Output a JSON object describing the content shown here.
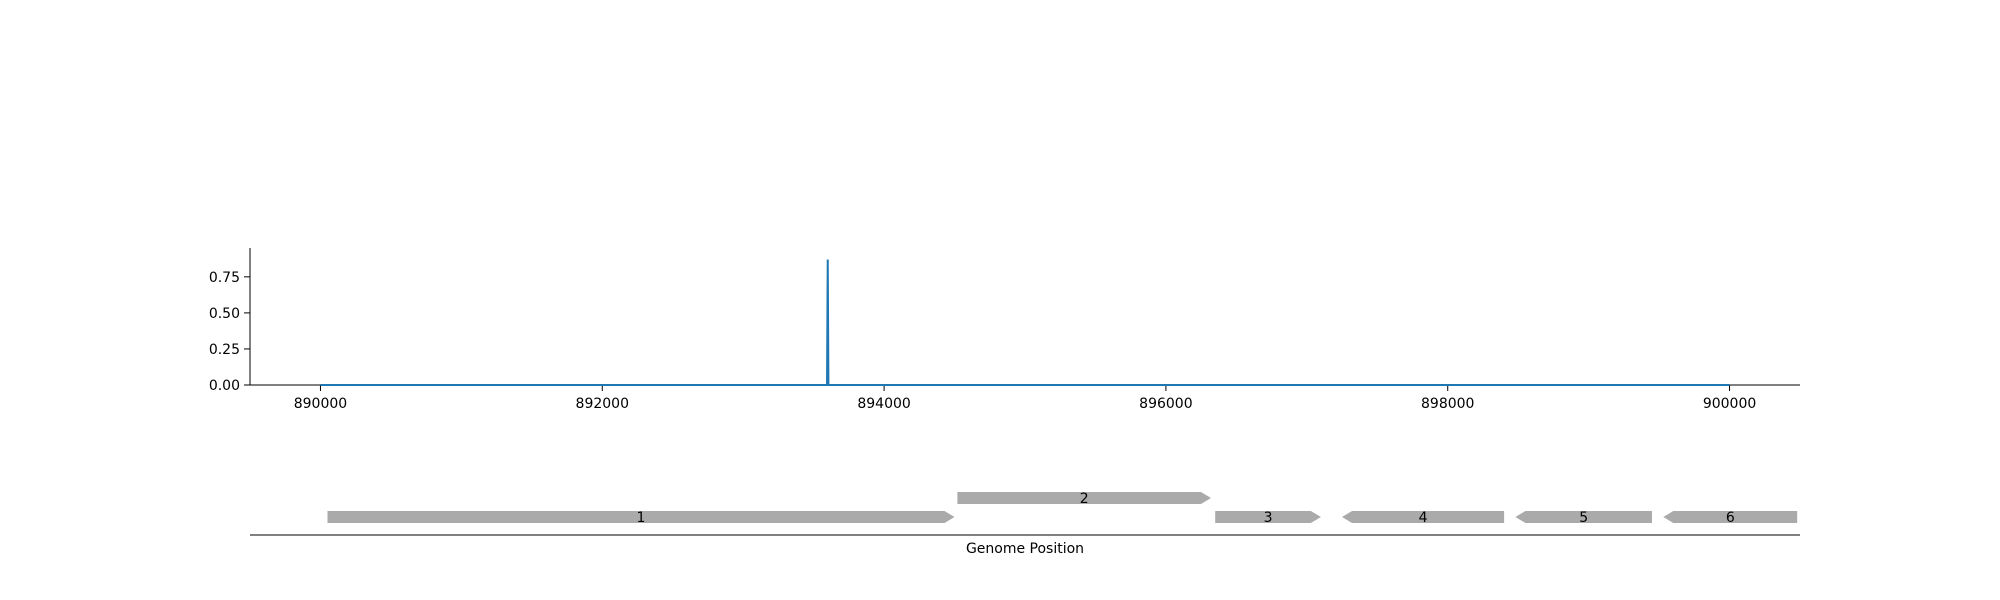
{
  "chart_data": [
    {
      "type": "line",
      "title": "",
      "xlabel": "",
      "ylabel": "",
      "xlim": [
        889500,
        900500
      ],
      "ylim": [
        0,
        0.95
      ],
      "x_ticks": [
        890000,
        892000,
        894000,
        896000,
        898000,
        900000
      ],
      "x_tick_labels": [
        "890000",
        "892000",
        "894000",
        "896000",
        "898000",
        "900000"
      ],
      "y_ticks": [
        0.0,
        0.25,
        0.5,
        0.75
      ],
      "y_tick_labels": [
        "0.00",
        "0.25",
        "0.50",
        "0.75"
      ],
      "grid": false,
      "color": "#1f77b4",
      "series": [
        {
          "x": [
            890000,
            893595,
            893600,
            893605,
            900000
          ],
          "y": [
            0.0,
            0.0,
            0.87,
            0.0,
            0.0
          ]
        }
      ]
    },
    {
      "type": "gene-track",
      "xlabel": "Genome Position",
      "xlim": [
        889500,
        900500
      ],
      "gene_color": "#aaaaaa",
      "genes": [
        {
          "label": "1",
          "start": 890050,
          "end": 894500,
          "strand": "+",
          "row": 0
        },
        {
          "label": "2",
          "start": 894520,
          "end": 896320,
          "strand": "+",
          "row": 1
        },
        {
          "label": "3",
          "start": 896350,
          "end": 897100,
          "strand": "+",
          "row": 0
        },
        {
          "label": "4",
          "start": 897250,
          "end": 898400,
          "strand": "-",
          "row": 0
        },
        {
          "label": "5",
          "start": 898480,
          "end": 899450,
          "strand": "-",
          "row": 0
        },
        {
          "label": "6",
          "start": 899530,
          "end": 900480,
          "strand": "-",
          "row": 0
        }
      ]
    }
  ]
}
